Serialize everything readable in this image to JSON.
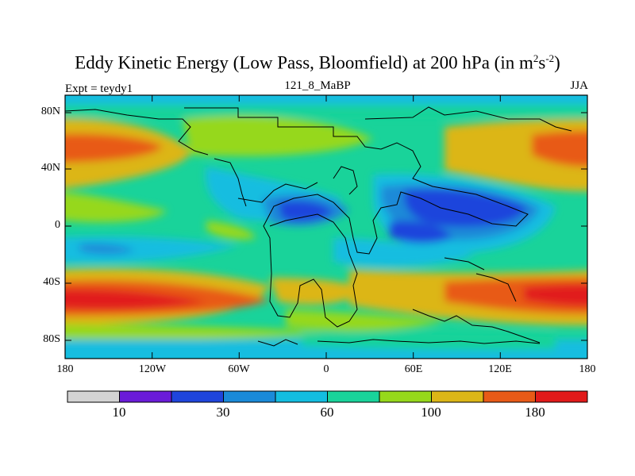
{
  "title": {
    "main": "Eddy Kinetic Energy (Low Pass, Bloomfield) at 200 hPa (in m",
    "sup1": "2",
    "mid": "s",
    "sup2": "-2",
    "end": ")"
  },
  "subtitle_left": "Expt = teydy1",
  "subtitle_center": "121_8_MaBP",
  "subtitle_right": "JJA",
  "y_ticks": [
    "80N",
    "40N",
    "0",
    "40S",
    "80S"
  ],
  "x_ticks": [
    "180",
    "120W",
    "60W",
    "0",
    "60E",
    "120E",
    "180"
  ],
  "colorbar": {
    "colors": [
      "#d3d3d3",
      "#6a1bd8",
      "#1f45dc",
      "#1a8ad8",
      "#13bde0",
      "#19d39a",
      "#96d81b",
      "#dcb617",
      "#e85a17",
      "#e11a1a"
    ],
    "labels": [
      "10",
      "30",
      "60",
      "100",
      "180"
    ]
  }
}
